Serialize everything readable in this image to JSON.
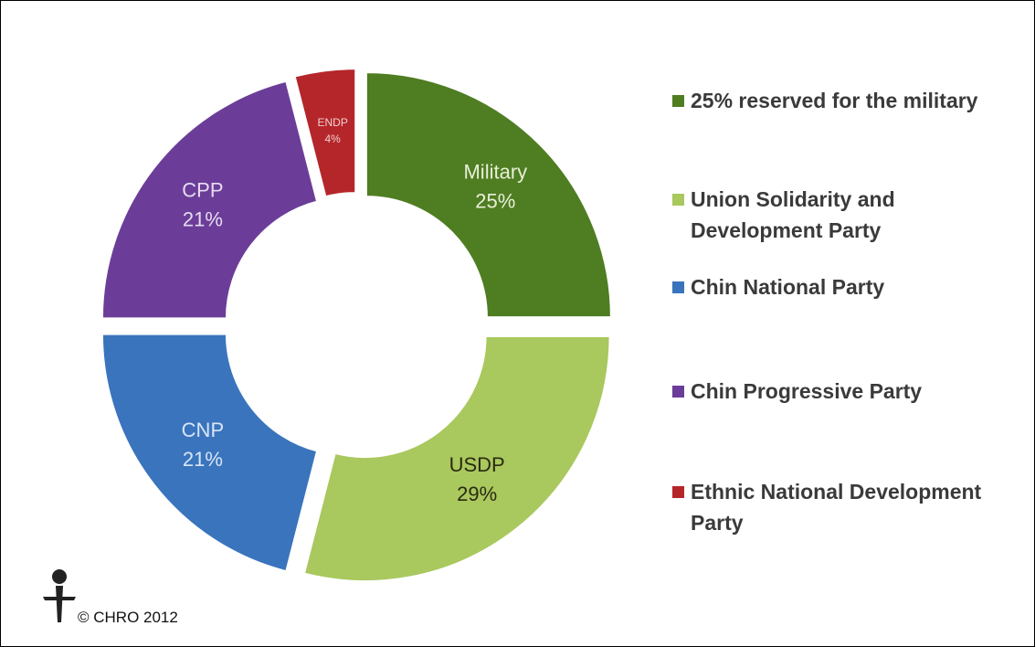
{
  "chart_data": {
    "type": "donut",
    "categories": [
      "Military",
      "USDP",
      "CNP",
      "CPP",
      "ENDP"
    ],
    "values": [
      25,
      29,
      21,
      21,
      4
    ],
    "value_labels": [
      "25%",
      "29%",
      "21%",
      "21%",
      "4%"
    ],
    "colors": [
      "#4f7d22",
      "#a9c85e",
      "#3a74bd",
      "#6b3d98",
      "#b5262a"
    ],
    "label_colors": [
      "#e8f0d8",
      "#2a2a10",
      "#d8e6f6",
      "#e6dcf2",
      "#f0d0d0"
    ],
    "legend": [
      "25% reserved for the military",
      "Union Solidarity and Development Party",
      "Chin National Party",
      "Chin Progressive Party",
      "Ethnic National Development Party"
    ],
    "footer": "© CHRO 2012"
  }
}
